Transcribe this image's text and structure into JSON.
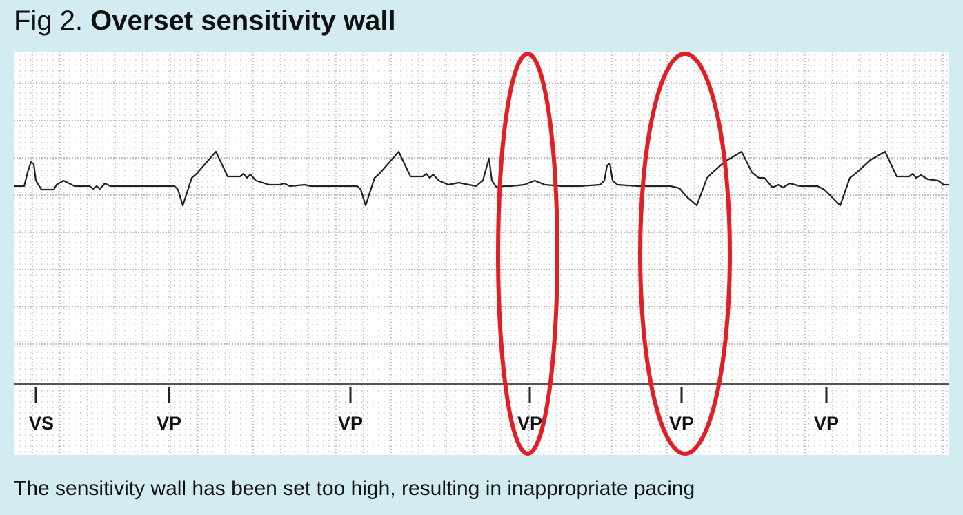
{
  "figure": {
    "label": "Fig 2.",
    "title": "Overset sensitivity wall",
    "caption": "The sensitivity wall has been set too high, resulting in inappropriate pacing"
  },
  "strip": {
    "markers": [
      "VS",
      "VP",
      "VP",
      "VP",
      "VP",
      "VP"
    ],
    "highlighted_markers": [
      3,
      4
    ],
    "colors": {
      "background": "#d3ecf2",
      "paper": "#ffffff",
      "trace": "#222222",
      "grid": "#9a9a9a",
      "highlight": "#e31e24"
    }
  }
}
